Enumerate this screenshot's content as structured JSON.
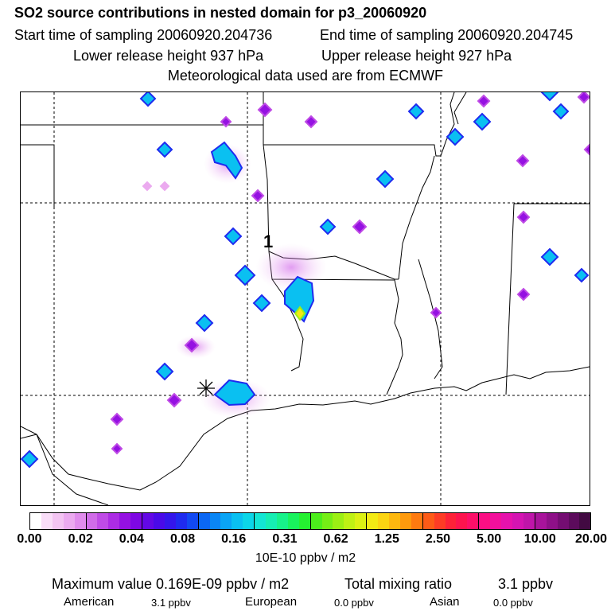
{
  "header": {
    "title": "SO2 source contributions in nested domain for p3_20060920",
    "start_time": "Start time of sampling 20060920.204736",
    "end_time": "End time of sampling 20060920.204745",
    "lower_height": "Lower release height  937 hPa",
    "upper_height": "Upper release height  927 hPa",
    "met_source": "Meteorological data used are from ECMWF"
  },
  "map": {
    "label_1": "1",
    "marker": "release-point-star"
  },
  "colorbar": {
    "ticks": [
      "0.00",
      "0.02",
      "0.04",
      "0.08",
      "0.16",
      "0.31",
      "0.62",
      "1.25",
      "2.50",
      "5.00",
      "10.00",
      "20.00"
    ],
    "colors": [
      "#ffffff",
      "#f9ddf8",
      "#f3c4f2",
      "#ebaaef",
      "#e08cec",
      "#d06ce8",
      "#bf4be6",
      "#ac2ce4",
      "#9511e2",
      "#7e07e3",
      "#6308e5",
      "#4a0ae8",
      "#3416eb",
      "#1f2bef",
      "#1249f2",
      "#0b67f4",
      "#0a86f5",
      "#0aa4f5",
      "#0ac0f1",
      "#0cd6e8",
      "#13e6d4",
      "#16eeb3",
      "#17f28a",
      "#19f25d",
      "#25f031",
      "#4cee1c",
      "#76ee16",
      "#9cef14",
      "#bff114",
      "#dcf114",
      "#f3ea14",
      "#fbd412",
      "#fdb80f",
      "#fe9a0d",
      "#fe7a10",
      "#fd5b17",
      "#fd3c25",
      "#fd2238",
      "#fd144e",
      "#fd0f69",
      "#fb0f84",
      "#f2109c",
      "#e612ac",
      "#d414b2",
      "#bf15aa",
      "#a8139b",
      "#8e1088",
      "#740d72",
      "#5c0b5c",
      "#420a42"
    ],
    "units": "10E-10 ppbv / m2"
  },
  "summary": {
    "max_label": "Maximum value  0.169E-09 ppbv / m2",
    "total_label": "Total mixing ratio",
    "total_value": "3.1 ppbv",
    "american_label": "American",
    "american_value": "3.1 ppbv",
    "european_label": "European",
    "european_value": "0.0 ppbv",
    "asian_label": "Asian",
    "asian_value": "0.0 ppbv"
  }
}
